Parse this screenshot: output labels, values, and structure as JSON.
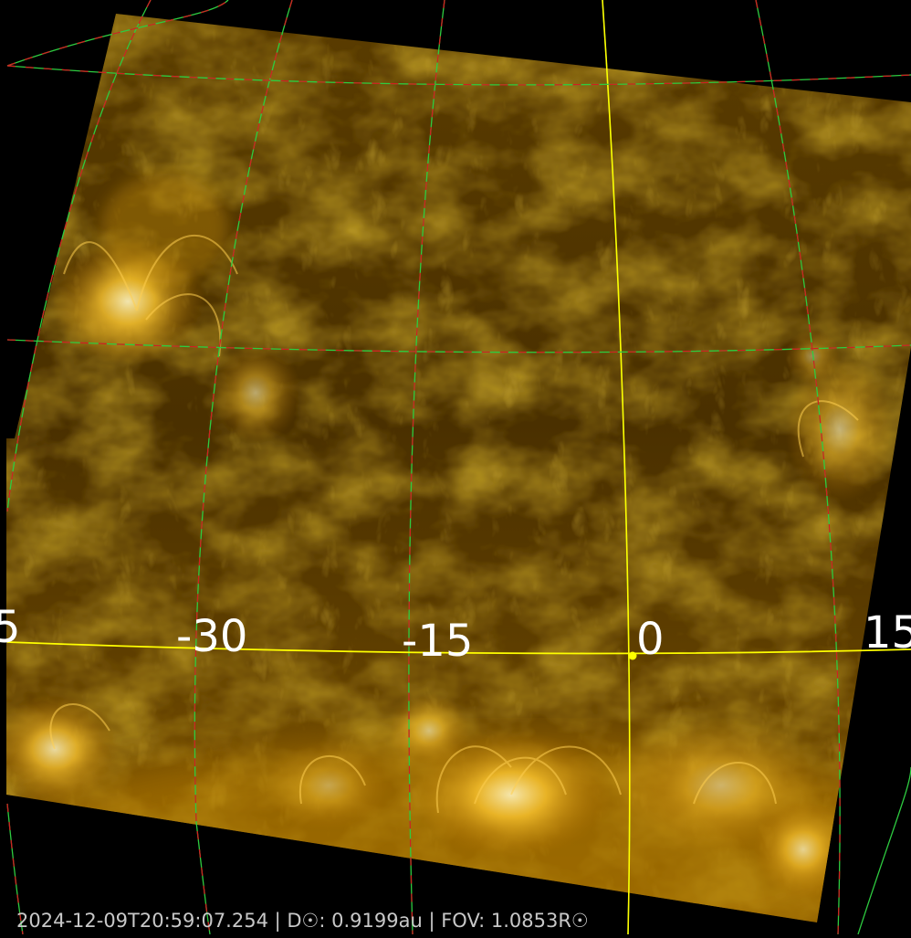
{
  "image": {
    "subject": "solar-corona-euv",
    "palette": {
      "background": "#000000",
      "disk_dark": "#3a2500",
      "disk_mid": "#7a5200",
      "disk_bright": "#ffd040",
      "highlight": "#fff2b0",
      "grid_green": "#2ecc40",
      "grid_red": "#d02020",
      "equator": "#ffff00",
      "marker": "#ffff00"
    }
  },
  "longitude_labels": [
    "5",
    "-30",
    "-15",
    "0",
    "15"
  ],
  "footer": {
    "text": "2024-12-09T20:59:07.254 | D☉:  0.9199au | FOV: 1.0853R☉"
  }
}
